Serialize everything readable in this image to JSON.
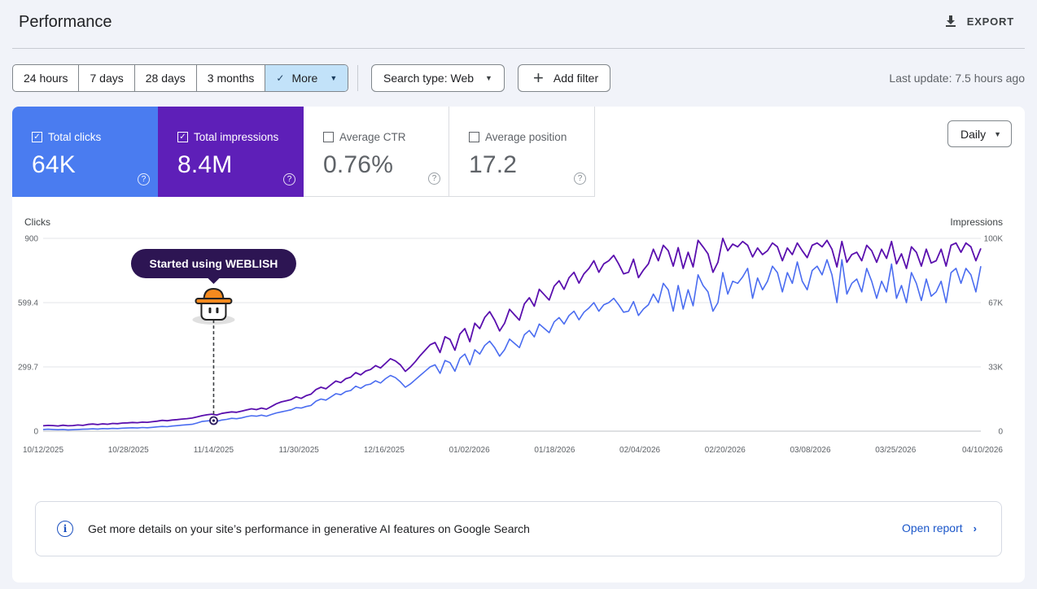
{
  "header": {
    "title": "Performance",
    "export_label": "EXPORT",
    "export_icon": "download-icon"
  },
  "date_ranges": [
    {
      "label": "24 hours",
      "selected": false
    },
    {
      "label": "7 days",
      "selected": false
    },
    {
      "label": "28 days",
      "selected": false
    },
    {
      "label": "3 months",
      "selected": false
    },
    {
      "label": "More",
      "selected": true
    }
  ],
  "filters": {
    "search_type": "Search type: Web",
    "add_filter": "Add filter"
  },
  "last_update": "Last update: 7.5 hours ago",
  "metrics": [
    {
      "label": "Total clicks",
      "value": "64K",
      "checked": true,
      "color": "#4a7cf0"
    },
    {
      "label": "Total impressions",
      "value": "8.4M",
      "checked": true,
      "color": "#5e1fb8"
    },
    {
      "label": "Average CTR",
      "value": "0.76%",
      "checked": false
    },
    {
      "label": "Average position",
      "value": "17.2",
      "checked": false
    }
  ],
  "granularity": "Daily",
  "annotation": {
    "text": "Started using WEBLISH",
    "date": "11/14/2025",
    "icon": "bucket-hat-mascot-icon"
  },
  "banner": {
    "text": "Get more details on your site’s performance in generative AI features on Google Search",
    "link": "Open report"
  },
  "chart_data": {
    "type": "line",
    "left_axis_label": "Clicks",
    "right_axis_label": "Impressions",
    "left_ticks": [
      "0",
      "299.7",
      "599.4",
      "900"
    ],
    "right_ticks": [
      "0",
      "33K",
      "67K",
      "100K"
    ],
    "ylim_left": [
      0,
      900
    ],
    "ylim_right": [
      0,
      100000
    ],
    "x_tick_labels": [
      "10/12/2025",
      "10/28/2025",
      "11/14/2025",
      "11/30/2025",
      "12/16/2025",
      "01/02/2026",
      "01/18/2026",
      "02/04/2026",
      "02/20/2026",
      "03/08/2026",
      "03/25/2026",
      "04/10/2026"
    ],
    "grid": true,
    "series": [
      {
        "name": "Clicks",
        "axis": "left",
        "color": "#4a6cf0",
        "values": [
          8,
          9,
          8,
          7,
          8,
          6,
          7,
          8,
          9,
          10,
          11,
          10,
          12,
          11,
          13,
          12,
          14,
          15,
          16,
          15,
          17,
          16,
          18,
          20,
          22,
          21,
          24,
          26,
          28,
          30,
          32,
          38,
          45,
          48,
          50,
          46,
          52,
          55,
          60,
          58,
          62,
          68,
          72,
          70,
          75,
          70,
          78,
          85,
          90,
          95,
          100,
          110,
          108,
          115,
          120,
          140,
          150,
          145,
          160,
          175,
          170,
          185,
          190,
          210,
          200,
          215,
          220,
          235,
          225,
          245,
          260,
          250,
          230,
          205,
          220,
          240,
          260,
          280,
          300,
          310,
          270,
          330,
          320,
          280,
          340,
          360,
          310,
          380,
          360,
          400,
          420,
          390,
          350,
          380,
          430,
          410,
          390,
          450,
          470,
          440,
          500,
          480,
          460,
          510,
          530,
          500,
          540,
          560,
          520,
          555,
          575,
          600,
          560,
          590,
          600,
          620,
          590,
          555,
          560,
          605,
          540,
          570,
          590,
          640,
          600,
          690,
          660,
          560,
          680,
          570,
          660,
          585,
          730,
          680,
          650,
          560,
          600,
          740,
          640,
          700,
          690,
          720,
          760,
          620,
          715,
          660,
          700,
          770,
          740,
          650,
          740,
          690,
          790,
          700,
          660,
          750,
          770,
          730,
          800,
          730,
          600,
          800,
          640,
          690,
          710,
          650,
          760,
          700,
          620,
          700,
          650,
          780,
          620,
          680,
          600,
          740,
          690,
          610,
          710,
          630,
          650,
          700,
          600,
          740,
          760,
          690,
          760,
          730,
          650,
          770
        ]
      },
      {
        "name": "Impressions",
        "axis": "right",
        "color": "#5a0fae",
        "values": [
          2800,
          3000,
          2900,
          2700,
          3100,
          2800,
          2900,
          3200,
          3000,
          3500,
          3700,
          3400,
          3800,
          3600,
          4000,
          3900,
          4200,
          4300,
          4500,
          4400,
          4700,
          4600,
          4900,
          5200,
          5600,
          5400,
          5800,
          6000,
          6300,
          6500,
          6800,
          7400,
          8000,
          8500,
          8800,
          8400,
          9200,
          9600,
          10000,
          9800,
          10400,
          11000,
          11600,
          11200,
          12000,
          11400,
          12800,
          14200,
          15200,
          15800,
          16400,
          17800,
          17000,
          18400,
          19200,
          21600,
          22800,
          22000,
          24000,
          26000,
          25200,
          27200,
          28000,
          30400,
          29200,
          31200,
          32000,
          34000,
          32800,
          35200,
          37600,
          36400,
          34400,
          31000,
          33200,
          36000,
          39200,
          42000,
          44800,
          46000,
          40800,
          49000,
          47600,
          42000,
          50400,
          53200,
          46400,
          56000,
          53200,
          59000,
          62000,
          57600,
          52000,
          56000,
          63200,
          60400,
          57600,
          66000,
          69200,
          64800,
          73600,
          70800,
          68000,
          75200,
          78000,
          73600,
          79600,
          82400,
          76800,
          81600,
          84400,
          88400,
          82400,
          86800,
          88400,
          91200,
          86800,
          81600,
          82400,
          89200,
          79600,
          83600,
          86800,
          94400,
          88400,
          96400,
          93600,
          85600,
          95200,
          84400,
          92800,
          85200,
          99000,
          95600,
          92000,
          82400,
          87600,
          100000,
          93600,
          97000,
          95600,
          98400,
          96400,
          90400,
          95000,
          91600,
          93600,
          97600,
          95600,
          88400,
          95000,
          91600,
          97600,
          93600,
          90000,
          96400,
          97600,
          95600,
          99000,
          94400,
          85200,
          98400,
          87600,
          91600,
          92800,
          88400,
          96400,
          93600,
          87600,
          94400,
          89600,
          98400,
          86800,
          92000,
          84400,
          95600,
          92800,
          85600,
          94400,
          87200,
          88400,
          94400,
          85600,
          96400,
          97600,
          92800,
          97600,
          95600,
          88400,
          94800
        ]
      }
    ]
  }
}
